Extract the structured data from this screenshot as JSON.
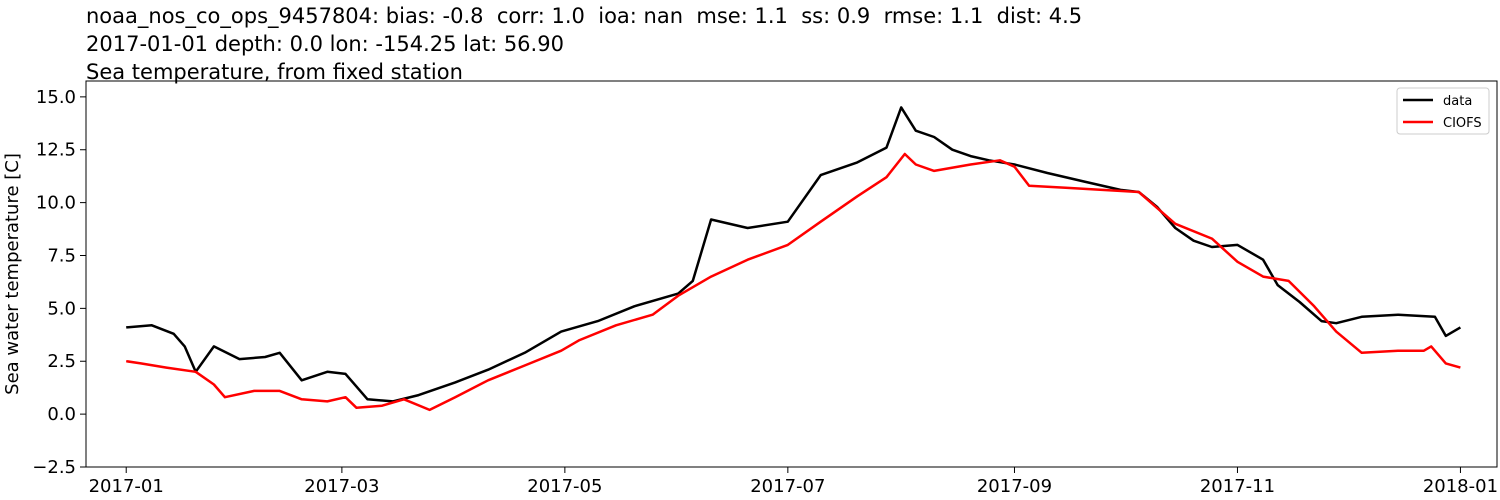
{
  "title_lines": [
    "noaa_nos_co_ops_9457804: bias: -0.8  corr: 1.0  ioa: nan  mse: 1.1  ss: 0.9  rmse: 1.1  dist: 4.5",
    "2017-01-01 depth: 0.0 lon: -154.25 lat: 56.90",
    "Sea temperature, from fixed station"
  ],
  "chart_data": {
    "type": "line",
    "ylabel": "Sea water temperature [C]",
    "xlabel": "",
    "xlim": [
      "2016-12-21",
      "2018-01-11"
    ],
    "ylim": [
      -2.5,
      15.75
    ],
    "x_ticks": [
      "2017-01",
      "2017-03",
      "2017-05",
      "2017-07",
      "2017-09",
      "2017-11",
      "2018-01"
    ],
    "y_ticks": [
      "−2.5",
      "0.0",
      "2.5",
      "5.0",
      "7.5",
      "10.0",
      "12.5",
      "15.0"
    ],
    "legend_position": "upper right",
    "series": [
      {
        "name": "data",
        "color": "#000000",
        "x": [
          "2017-01-01",
          "2017-01-08",
          "2017-01-14",
          "2017-01-17",
          "2017-01-20",
          "2017-01-25",
          "2017-02-01",
          "2017-02-08",
          "2017-02-12",
          "2017-02-18",
          "2017-02-25",
          "2017-03-02",
          "2017-03-08",
          "2017-03-15",
          "2017-03-22",
          "2017-04-01",
          "2017-04-10",
          "2017-04-20",
          "2017-04-30",
          "2017-05-10",
          "2017-05-20",
          "2017-06-01",
          "2017-06-05",
          "2017-06-10",
          "2017-06-20",
          "2017-07-01",
          "2017-07-10",
          "2017-07-20",
          "2017-07-28",
          "2017-08-01",
          "2017-08-05",
          "2017-08-10",
          "2017-08-15",
          "2017-08-20",
          "2017-08-25",
          "2017-09-01",
          "2017-09-10",
          "2017-09-20",
          "2017-09-30",
          "2017-10-05",
          "2017-10-10",
          "2017-10-15",
          "2017-10-20",
          "2017-10-25",
          "2017-11-01",
          "2017-11-08",
          "2017-11-12",
          "2017-11-18",
          "2017-11-24",
          "2017-11-28",
          "2017-12-05",
          "2017-12-15",
          "2017-12-25",
          "2017-12-28",
          "2018-01-01"
        ],
        "y": [
          4.1,
          4.2,
          3.8,
          3.2,
          2.0,
          3.2,
          2.6,
          2.7,
          2.9,
          1.6,
          2.0,
          1.9,
          0.7,
          0.6,
          0.9,
          1.5,
          2.1,
          2.9,
          3.9,
          4.4,
          5.1,
          5.7,
          6.3,
          9.2,
          8.8,
          9.1,
          11.3,
          11.9,
          12.6,
          14.5,
          13.4,
          13.1,
          12.5,
          12.2,
          12.0,
          11.8,
          11.4,
          11.0,
          10.6,
          10.5,
          9.8,
          8.8,
          8.2,
          7.9,
          8.0,
          7.3,
          6.1,
          5.3,
          4.4,
          4.3,
          4.6,
          4.7,
          4.6,
          3.7,
          4.1
        ]
      },
      {
        "name": "CIOFS",
        "color": "#ff0000",
        "x": [
          "2017-01-01",
          "2017-01-05",
          "2017-01-12",
          "2017-01-20",
          "2017-01-25",
          "2017-01-28",
          "2017-02-05",
          "2017-02-12",
          "2017-02-18",
          "2017-02-25",
          "2017-03-02",
          "2017-03-05",
          "2017-03-12",
          "2017-03-18",
          "2017-03-25",
          "2017-04-01",
          "2017-04-10",
          "2017-04-20",
          "2017-04-30",
          "2017-05-05",
          "2017-05-15",
          "2017-05-25",
          "2017-06-01",
          "2017-06-10",
          "2017-06-20",
          "2017-07-01",
          "2017-07-10",
          "2017-07-20",
          "2017-07-28",
          "2017-08-02",
          "2017-08-05",
          "2017-08-10",
          "2017-08-20",
          "2017-08-28",
          "2017-09-01",
          "2017-09-05",
          "2017-09-15",
          "2017-09-25",
          "2017-10-05",
          "2017-10-15",
          "2017-10-25",
          "2017-11-01",
          "2017-11-08",
          "2017-11-15",
          "2017-11-22",
          "2017-11-28",
          "2017-12-05",
          "2017-12-15",
          "2017-12-22",
          "2017-12-24",
          "2017-12-28",
          "2018-01-01"
        ],
        "y": [
          2.5,
          2.4,
          2.2,
          2.0,
          1.4,
          0.8,
          1.1,
          1.1,
          0.7,
          0.6,
          0.8,
          0.3,
          0.4,
          0.7,
          0.2,
          0.8,
          1.6,
          2.3,
          3.0,
          3.5,
          4.2,
          4.7,
          5.6,
          6.5,
          7.3,
          8.0,
          9.1,
          10.3,
          11.2,
          12.3,
          11.8,
          11.5,
          11.8,
          12.0,
          11.7,
          10.8,
          10.7,
          10.6,
          10.5,
          9.0,
          8.3,
          7.2,
          6.5,
          6.3,
          5.1,
          3.9,
          2.9,
          3.0,
          3.0,
          3.2,
          2.4,
          2.2
        ]
      }
    ]
  }
}
